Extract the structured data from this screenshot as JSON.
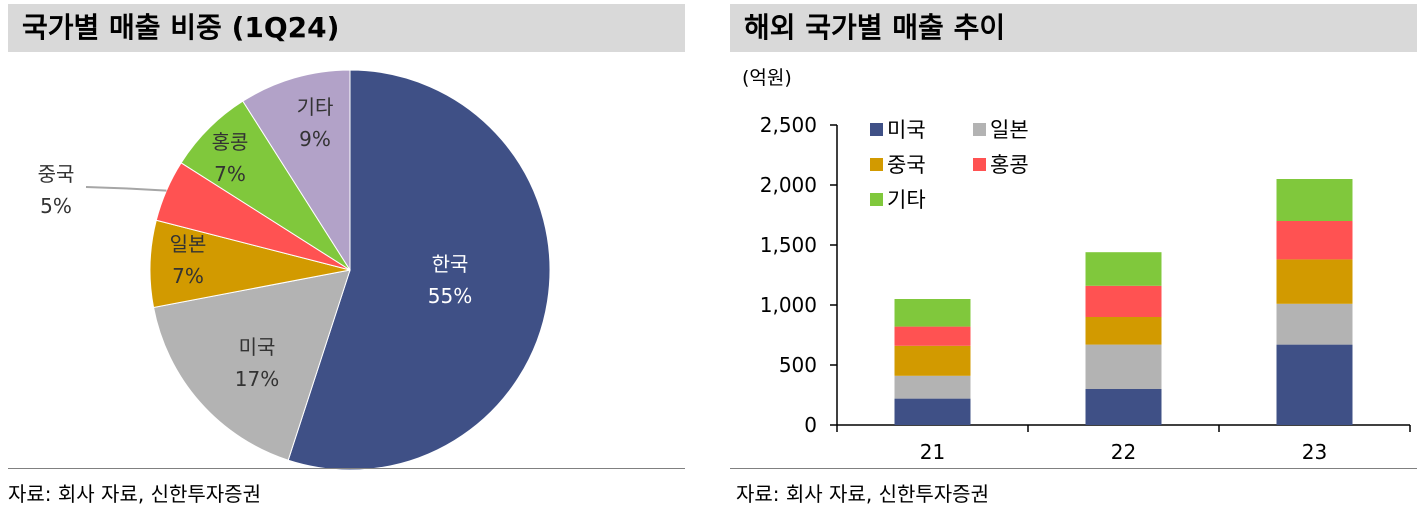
{
  "colors": {
    "title_bg": "#d9d9d9",
    "korea": "#3f5086",
    "usa": "#b3b3b3",
    "japan": "#d29a00",
    "china": "#ff5252",
    "hongkong": "#80c83c",
    "other": "#b2a2c8"
  },
  "left_panel": {
    "title": "국가별 매출 비중 (1Q24)",
    "source": "자료: 회사 자료, 신한투자증권"
  },
  "right_panel": {
    "title": "해외 국가별 매출 추이",
    "source": "자료: 회사 자료, 신한투자증권"
  },
  "chart_data": [
    {
      "type": "pie",
      "title": "국가별 매출 비중 (1Q24)",
      "slices": [
        {
          "label": "한국",
          "value": 55,
          "value_label": "55%",
          "color": "#3f5086",
          "text_color": "#ffffff"
        },
        {
          "label": "미국",
          "value": 17,
          "value_label": "17%",
          "color": "#b3b3b3",
          "text_color": "#333333"
        },
        {
          "label": "일본",
          "value": 7,
          "value_label": "7%",
          "color": "#d29a00",
          "text_color": "#333333"
        },
        {
          "label": "중국",
          "value": 5,
          "value_label": "5%",
          "color": "#ff5252",
          "text_color": "#333333",
          "callout": true
        },
        {
          "label": "홍콩",
          "value": 7,
          "value_label": "7%",
          "color": "#80c83c",
          "text_color": "#333333"
        },
        {
          "label": "기타",
          "value": 9,
          "value_label": "9%",
          "color": "#b2a2c8",
          "text_color": "#333333"
        }
      ],
      "start": "12 o'clock",
      "direction": "clockwise"
    },
    {
      "type": "bar",
      "stacked": true,
      "title": "해외 국가별 매출 추이",
      "unit_label": "(억원)",
      "categories": [
        "21",
        "22",
        "23"
      ],
      "series": [
        {
          "name": "미국",
          "color": "#3f5086",
          "values": [
            220,
            300,
            670
          ]
        },
        {
          "name": "일본",
          "color": "#b3b3b3",
          "values": [
            190,
            370,
            340
          ]
        },
        {
          "name": "중국",
          "color": "#d29a00",
          "values": [
            250,
            230,
            370
          ]
        },
        {
          "name": "홍콩",
          "color": "#ff5252",
          "values": [
            160,
            260,
            320
          ]
        },
        {
          "name": "기타",
          "color": "#80c83c",
          "values": [
            230,
            280,
            350
          ]
        }
      ],
      "ylim": [
        0,
        2500
      ],
      "yticks": [
        0,
        500,
        1000,
        1500,
        2000,
        2500
      ],
      "ytick_labels": [
        "0",
        "500",
        "1,000",
        "1,500",
        "2,000",
        "2,500"
      ],
      "grid": false,
      "legend": "top-left"
    }
  ]
}
